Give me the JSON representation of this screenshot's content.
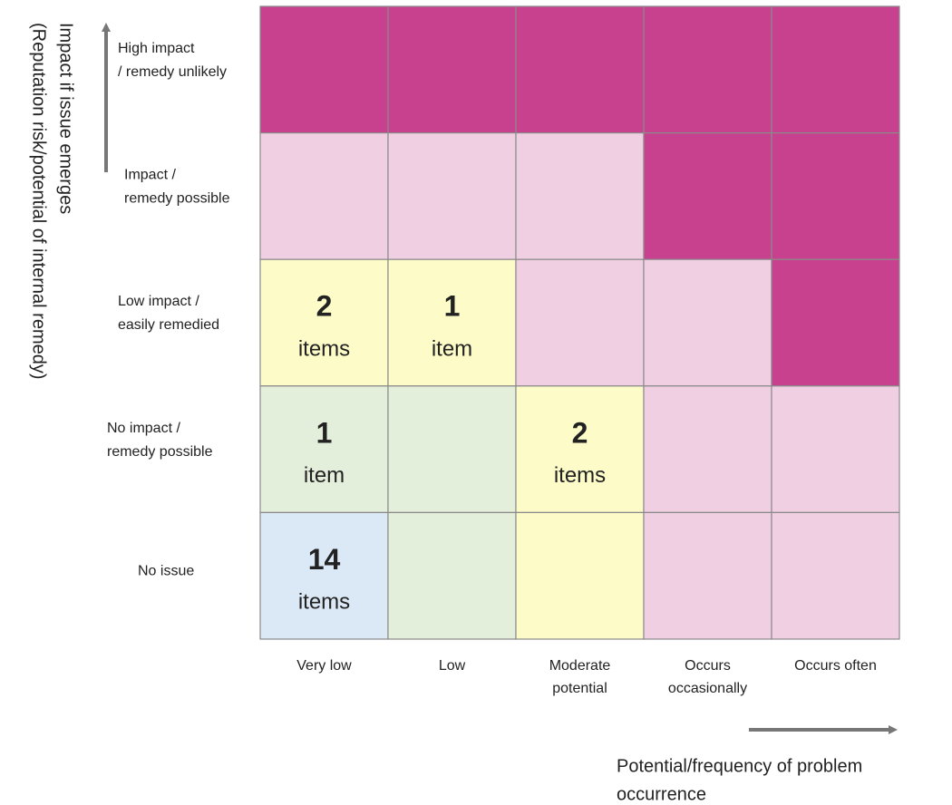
{
  "y_axis": {
    "title_lines": [
      "Impact if issue emerges",
      "(Reputation risk/potential of internal remedy)"
    ]
  },
  "x_axis": {
    "title_lines": [
      "Potential/frequency of problem",
      "occurrence"
    ]
  },
  "rows": [
    {
      "label_lines": [
        "High impact",
        "/ remedy unlikely"
      ]
    },
    {
      "label_lines": [
        "Impact /",
        "remedy possible"
      ]
    },
    {
      "label_lines": [
        "Low impact /",
        "easily remedied"
      ]
    },
    {
      "label_lines": [
        "No impact /",
        "remedy possible"
      ]
    },
    {
      "label_lines": [
        "No issue"
      ]
    }
  ],
  "columns": [
    {
      "label_lines": [
        "Very low"
      ]
    },
    {
      "label_lines": [
        "Low"
      ]
    },
    {
      "label_lines": [
        "Moderate",
        "potential"
      ]
    },
    {
      "label_lines": [
        "Occurs",
        "occasionally"
      ]
    },
    {
      "label_lines": [
        "Occurs often"
      ]
    }
  ],
  "cells": [
    [
      {
        "color": "#c8418f"
      },
      {
        "color": "#c8418f"
      },
      {
        "color": "#c8418f"
      },
      {
        "color": "#c8418f"
      },
      {
        "color": "#c8418f"
      }
    ],
    [
      {
        "color": "#f0cfe3"
      },
      {
        "color": "#f0cfe3"
      },
      {
        "color": "#f0cfe3"
      },
      {
        "color": "#c8418f"
      },
      {
        "color": "#c8418f"
      }
    ],
    [
      {
        "color": "#fdfcc8",
        "count": 2,
        "unit": "items"
      },
      {
        "color": "#fdfcc8",
        "count": 1,
        "unit": "item"
      },
      {
        "color": "#f0cfe3"
      },
      {
        "color": "#f0cfe3"
      },
      {
        "color": "#c8418f"
      }
    ],
    [
      {
        "color": "#e3eedb",
        "count": 1,
        "unit": "item"
      },
      {
        "color": "#e3eedb"
      },
      {
        "color": "#fdfcc8",
        "count": 2,
        "unit": "items"
      },
      {
        "color": "#f0cfe3"
      },
      {
        "color": "#f0cfe3"
      }
    ],
    [
      {
        "color": "#dbe8f5",
        "count": 14,
        "unit": "items"
      },
      {
        "color": "#e3eedb"
      },
      {
        "color": "#fdfcc8"
      },
      {
        "color": "#f0cfe3"
      },
      {
        "color": "#f0cfe3"
      }
    ]
  ]
}
